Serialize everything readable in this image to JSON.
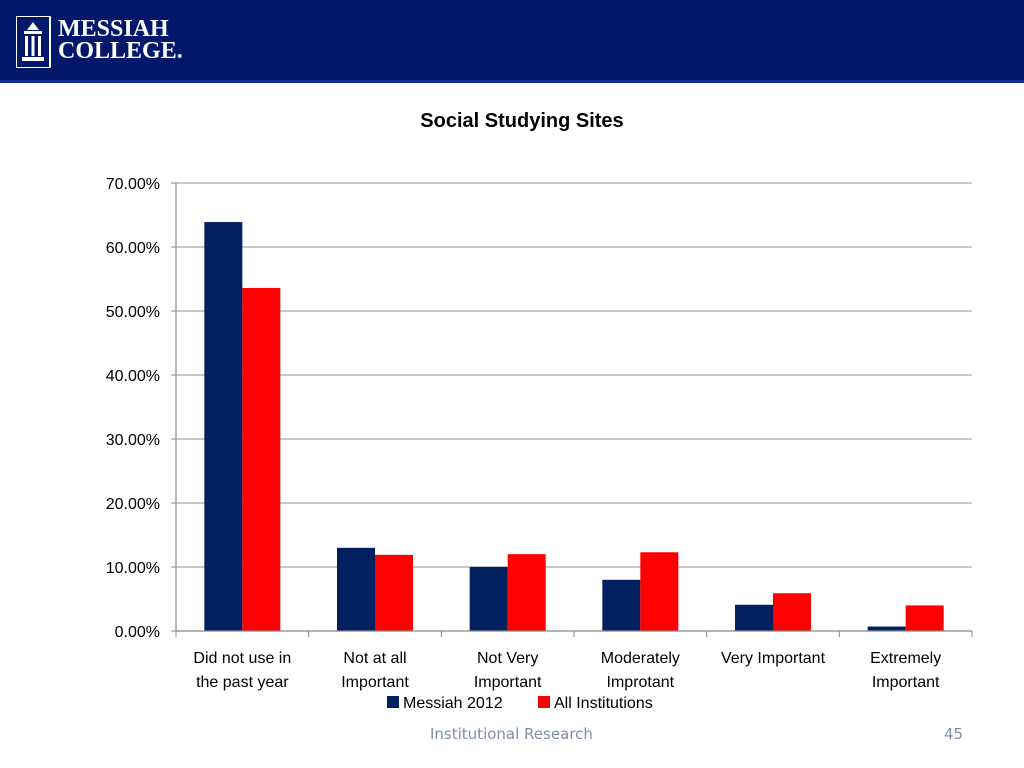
{
  "header": {
    "logo_line1": "MESSIAH",
    "logo_line2": "COLLEGE.",
    "bar_color": "#03176b"
  },
  "chart_data": {
    "type": "bar",
    "title": "Social Studying Sites",
    "categories": [
      [
        "Did not use in",
        "the past year"
      ],
      [
        "Not at all",
        "Important"
      ],
      [
        "Not Very",
        "Important"
      ],
      [
        "Moderately",
        "Improtant"
      ],
      [
        "Very Important"
      ],
      [
        "Extremely",
        "Important"
      ]
    ],
    "series": [
      {
        "name": "Messiah 2012",
        "color": "#002060",
        "values": [
          63.9,
          13.0,
          10.0,
          8.0,
          4.1,
          0.7
        ]
      },
      {
        "name": "All Institutions",
        "color": "#ff0000",
        "values": [
          53.6,
          11.9,
          12.0,
          12.3,
          5.9,
          4.0
        ]
      }
    ],
    "ylim": [
      0,
      70
    ],
    "yticks": [
      "0.00%",
      "10.00%",
      "20.00%",
      "30.00%",
      "40.00%",
      "50.00%",
      "60.00%",
      "70.00%"
    ],
    "grid": true,
    "legend": "bottom"
  },
  "footer": {
    "text": "Institutional Research",
    "page": "45"
  }
}
